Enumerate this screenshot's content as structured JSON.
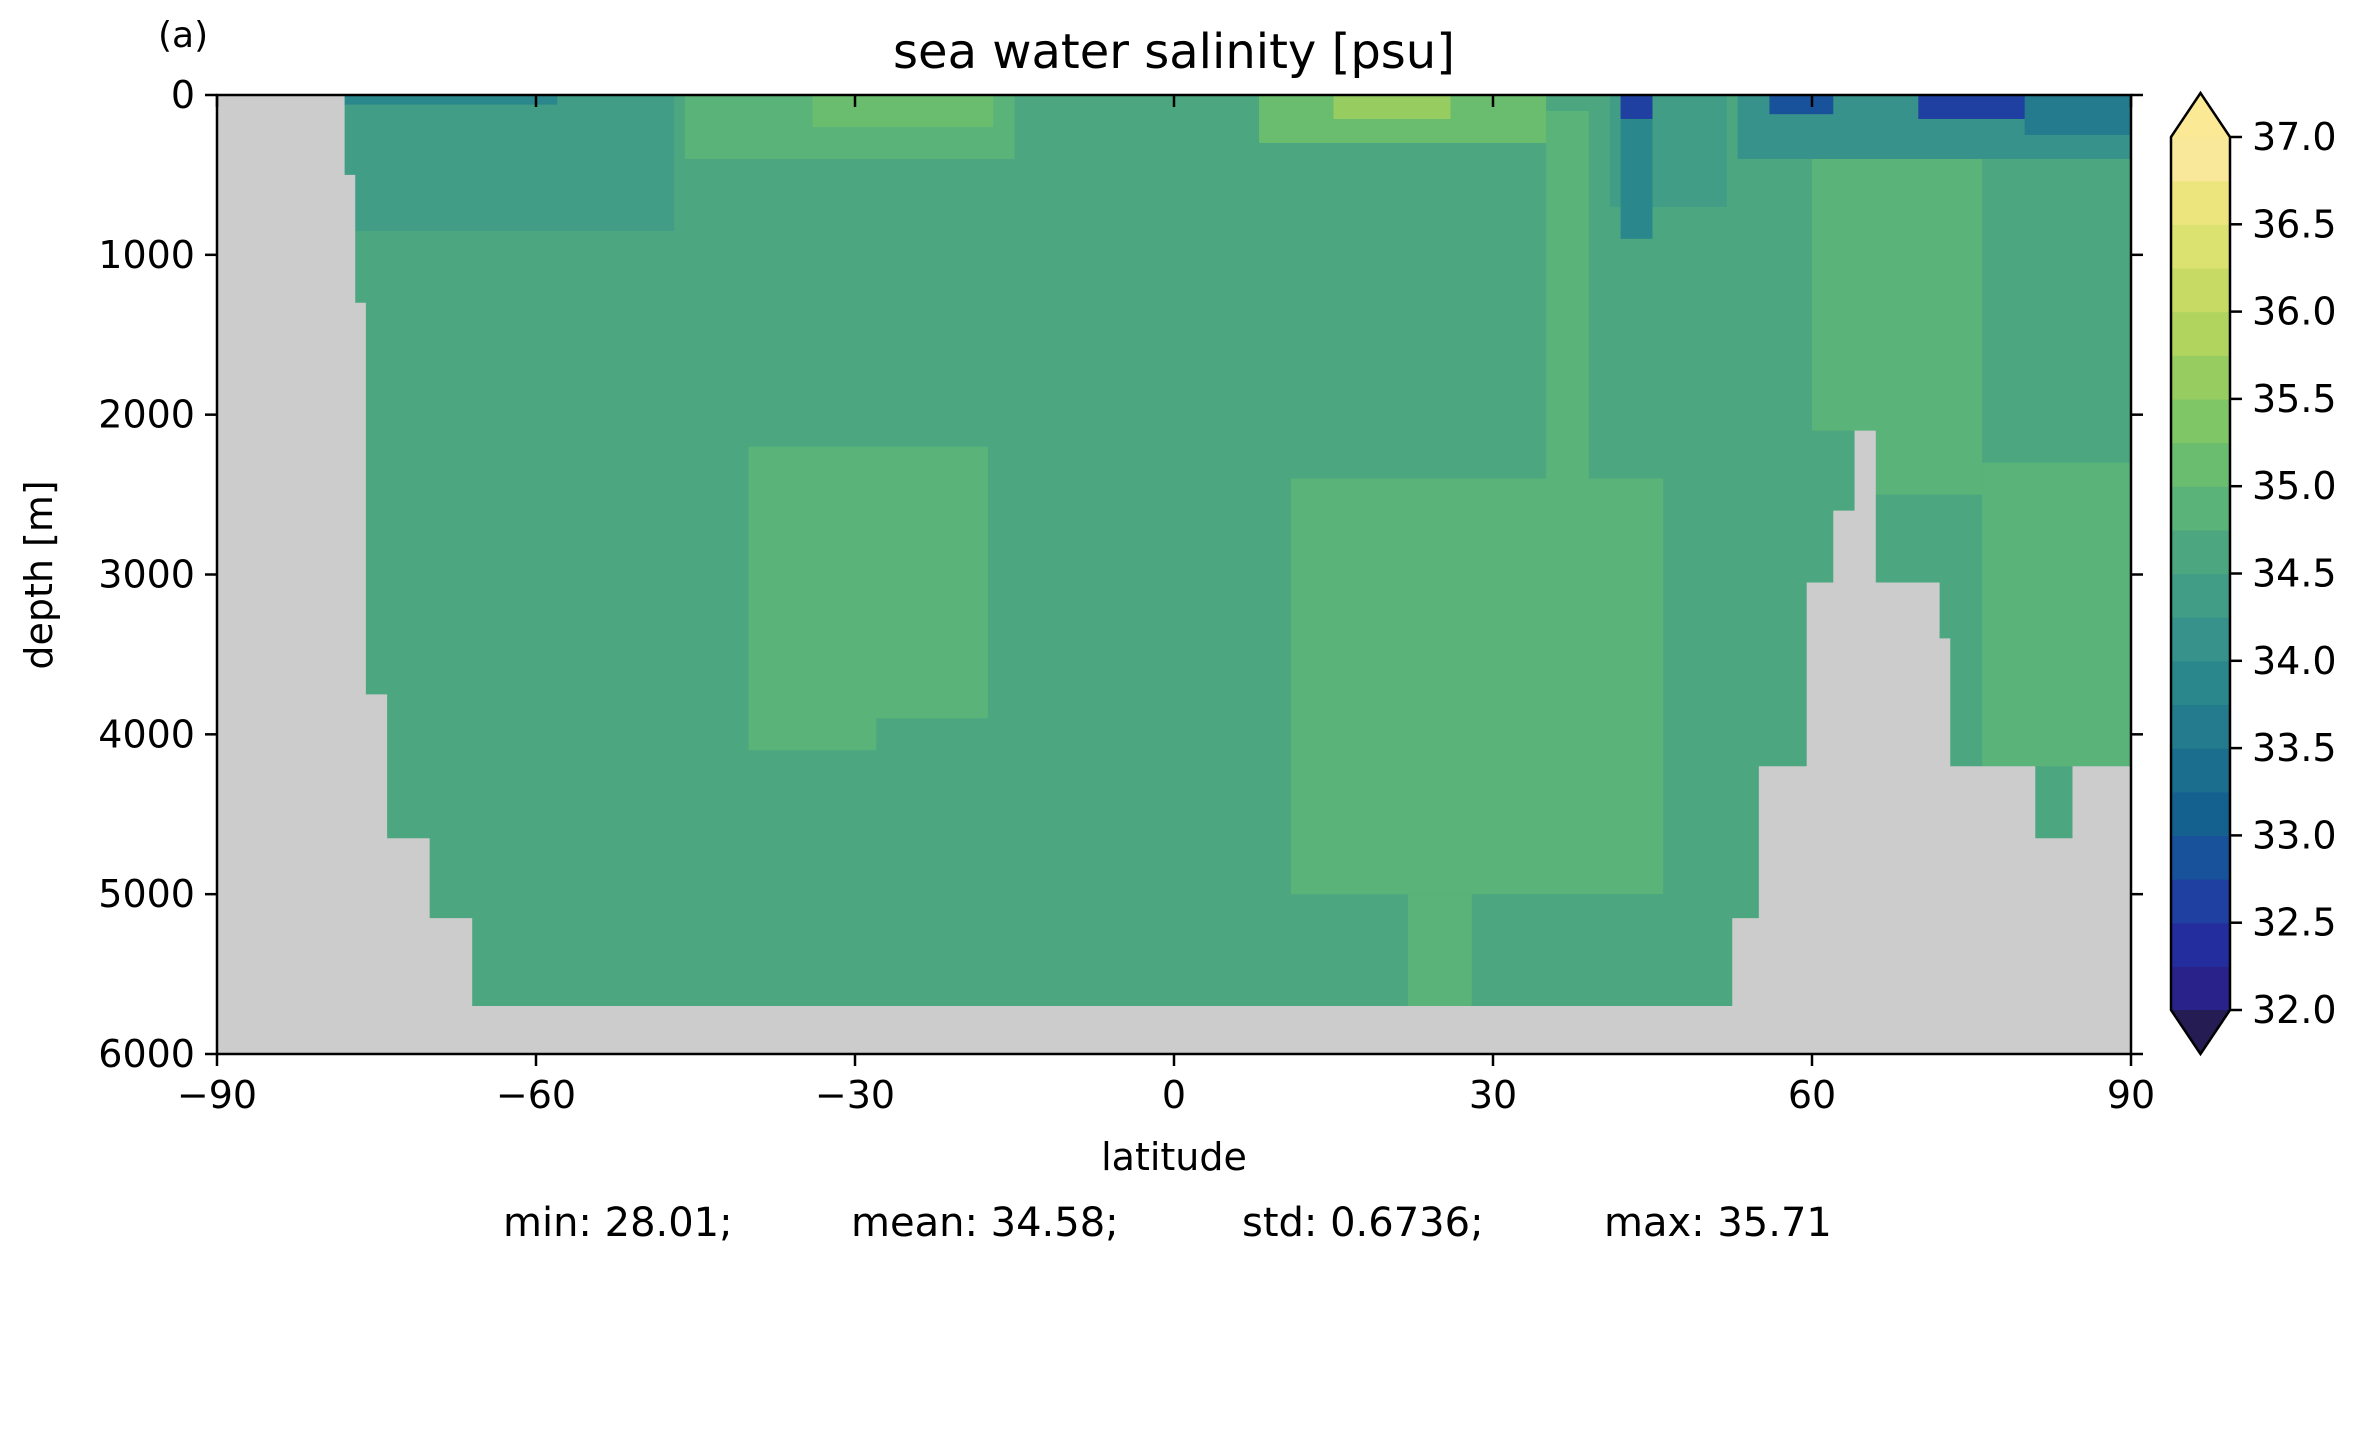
{
  "panel_label": "(a)",
  "stats": {
    "min": "min: 28.01;",
    "mean": "mean: 34.58;",
    "std": "std: 0.6736;",
    "max": "max: 35.71"
  },
  "chart_data": {
    "type": "heatmap",
    "title": "sea water salinity [psu]",
    "xlabel": "latitude",
    "ylabel": "depth [m]",
    "xlim": [
      -90,
      90
    ],
    "ylim": [
      6000,
      0
    ],
    "x_ticks": [
      -90,
      -60,
      -30,
      0,
      30,
      60,
      90
    ],
    "x_tick_labels": [
      "−90",
      "−60",
      "−30",
      "0",
      "30",
      "60",
      "90"
    ],
    "y_ticks": [
      0,
      1000,
      2000,
      3000,
      4000,
      5000,
      6000
    ],
    "y_tick_labels": [
      "0",
      "1000",
      "2000",
      "3000",
      "4000",
      "5000",
      "6000"
    ],
    "colorbar": {
      "label": "",
      "min": 32.0,
      "max": 37.0,
      "step": 0.25,
      "extend": "both",
      "ticks": [
        32.0,
        32.5,
        33.0,
        33.5,
        34.0,
        34.5,
        35.0,
        35.5,
        36.0,
        36.5,
        37.0
      ],
      "tick_labels": [
        "32.0",
        "32.5",
        "33.0",
        "33.5",
        "34.0",
        "34.5",
        "35.0",
        "35.5",
        "36.0",
        "36.5",
        "37.0"
      ],
      "colors": [
        "#241c53",
        "#28228a",
        "#242d9d",
        "#1f40a0",
        "#17529a",
        "#146190",
        "#1c6e8e",
        "#237b8d",
        "#2a878c",
        "#36928a",
        "#419d86",
        "#4ca780",
        "#5ab378",
        "#6abd6e",
        "#7ec666",
        "#97cd60",
        "#b0d45e",
        "#c6da64",
        "#dbe270",
        "#ece57e",
        "#fae89a",
        "#fbe995"
      ]
    },
    "land_color": "#cccccc",
    "bathymetry": [
      {
        "lat": -90,
        "depth": 0
      },
      {
        "lat": -78,
        "depth": 0
      },
      {
        "lat": -78,
        "depth": 500
      },
      {
        "lat": -77,
        "depth": 500
      },
      {
        "lat": -77,
        "depth": 1300
      },
      {
        "lat": -76,
        "depth": 1300
      },
      {
        "lat": -76,
        "depth": 3750
      },
      {
        "lat": -74,
        "depth": 3750
      },
      {
        "lat": -74,
        "depth": 4650
      },
      {
        "lat": -70,
        "depth": 4650
      },
      {
        "lat": -70,
        "depth": 5150
      },
      {
        "lat": -66,
        "depth": 5150
      },
      {
        "lat": -66,
        "depth": 5700
      },
      {
        "lat": 52.5,
        "depth": 5700
      },
      {
        "lat": 52.5,
        "depth": 5150
      },
      {
        "lat": 55,
        "depth": 5150
      },
      {
        "lat": 55,
        "depth": 4200
      },
      {
        "lat": 59.5,
        "depth": 4200
      },
      {
        "lat": 59.5,
        "depth": 3050
      },
      {
        "lat": 62,
        "depth": 3050
      },
      {
        "lat": 62,
        "depth": 2600
      },
      {
        "lat": 64,
        "depth": 2600
      },
      {
        "lat": 64,
        "depth": 2100
      },
      {
        "lat": 66,
        "depth": 2100
      },
      {
        "lat": 66,
        "depth": 3050
      },
      {
        "lat": 72,
        "depth": 3050
      },
      {
        "lat": 72,
        "depth": 3400
      },
      {
        "lat": 73,
        "depth": 3400
      },
      {
        "lat": 73,
        "depth": 4200
      },
      {
        "lat": 81,
        "depth": 4200
      },
      {
        "lat": 81,
        "depth": 4650
      },
      {
        "lat": 84.5,
        "depth": 4650
      },
      {
        "lat": 84.5,
        "depth": 4200
      },
      {
        "lat": 90,
        "depth": 4200
      },
      {
        "lat": 90,
        "depth": 6000
      },
      {
        "lat": -90,
        "depth": 6000
      }
    ],
    "ocean_background_value": 34.6,
    "fields": [
      {
        "lat": [
          -40,
          -17.5
        ],
        "depth": [
          2200,
          4100
        ],
        "value": 34.8
      },
      {
        "lat": [
          -28,
          -5
        ],
        "depth": [
          3900,
          5700
        ],
        "value": 34.65
      },
      {
        "lat": [
          -50,
          -8
        ],
        "depth": [
          4100,
          5700
        ],
        "value": 34.6
      },
      {
        "lat": [
          11,
          46
        ],
        "depth": [
          2400,
          5000
        ],
        "value": 34.8
      },
      {
        "lat": [
          22,
          30
        ],
        "depth": [
          5000,
          5700
        ],
        "value": 34.8
      },
      {
        "lat": [
          28,
          50
        ],
        "depth": [
          5000,
          5700
        ],
        "value": 34.6
      },
      {
        "lat": [
          35,
          39
        ],
        "depth": [
          100,
          2700
        ],
        "value": 34.9
      },
      {
        "lat": [
          60,
          68
        ],
        "depth": [
          100,
          2100
        ],
        "value": 34.95
      },
      {
        "lat": [
          76,
          90
        ],
        "depth": [
          2300,
          4200
        ],
        "value": 34.9
      },
      {
        "lat": [
          65,
          76
        ],
        "depth": [
          400,
          2500
        ],
        "value": 34.75
      },
      {
        "lat": [
          -78,
          -47
        ],
        "depth": [
          0,
          850
        ],
        "value": 34.3
      },
      {
        "lat": [
          -46,
          -15
        ],
        "depth": [
          0,
          400
        ],
        "value": 34.9
      },
      {
        "lat": [
          -34,
          -17
        ],
        "depth": [
          0,
          200
        ],
        "value": 35.2
      },
      {
        "lat": [
          8,
          35
        ],
        "depth": [
          0,
          300
        ],
        "value": 35.05
      },
      {
        "lat": [
          15,
          26
        ],
        "depth": [
          0,
          150
        ],
        "value": 35.5
      },
      {
        "lat": [
          41,
          52
        ],
        "depth": [
          0,
          700
        ],
        "value": 34.35
      },
      {
        "lat": [
          42,
          45
        ],
        "depth": [
          0,
          900
        ],
        "value": 33.9
      },
      {
        "lat": [
          42,
          45
        ],
        "depth": [
          0,
          150
        ],
        "value": 32.6
      },
      {
        "lat": [
          53,
          90
        ],
        "depth": [
          0,
          400
        ],
        "value": 34.2
      },
      {
        "lat": [
          56,
          62
        ],
        "depth": [
          0,
          120
        ],
        "value": 32.9
      },
      {
        "lat": [
          70,
          90
        ],
        "depth": [
          0,
          150
        ],
        "value": 32.7
      },
      {
        "lat": [
          -78,
          -58
        ],
        "depth": [
          0,
          60
        ],
        "value": 33.8
      },
      {
        "lat": [
          80,
          90
        ],
        "depth": [
          0,
          250
        ],
        "value": 33.5
      }
    ]
  }
}
